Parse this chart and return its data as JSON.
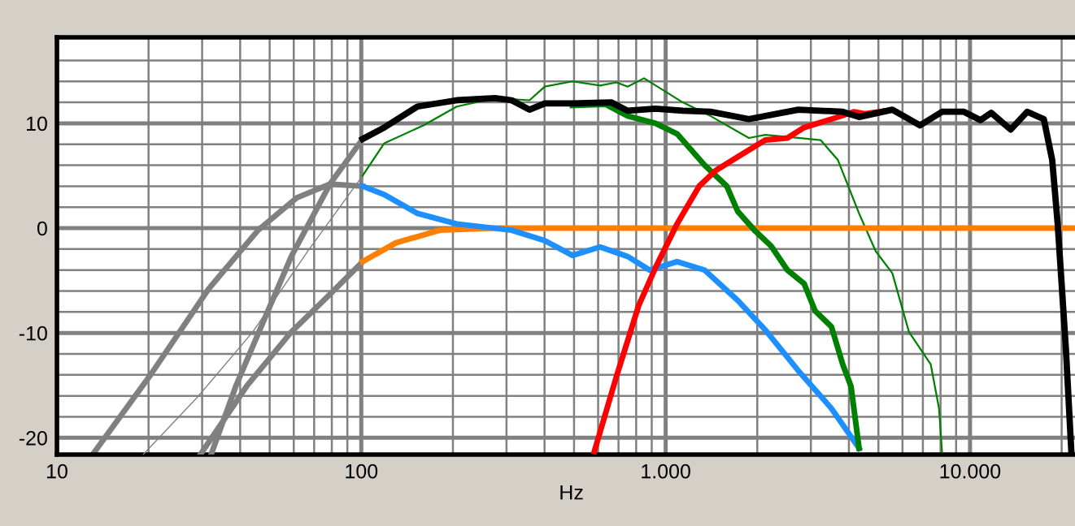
{
  "chart_data": {
    "type": "line",
    "xlabel": "Hz",
    "log": "x",
    "grid": true,
    "legend": false,
    "line_style": "solid",
    "marker": "none",
    "xlim": [
      10,
      24000
    ],
    "ylim": [
      -21.6,
      18.2
    ],
    "xticks": [
      10,
      {
        "value": 20,
        "label": null
      },
      {
        "value": 30,
        "label": null
      },
      {
        "value": 40,
        "label": null
      },
      {
        "value": 50,
        "label": null
      },
      {
        "value": 60,
        "label": null
      },
      {
        "value": 70,
        "label": null
      },
      {
        "value": 80,
        "label": null
      },
      {
        "value": 90,
        "label": null
      },
      100,
      {
        "value": 200,
        "label": null
      },
      {
        "value": 300,
        "label": null
      },
      {
        "value": 400,
        "label": null
      },
      {
        "value": 500,
        "label": null
      },
      {
        "value": 600,
        "label": null
      },
      {
        "value": 700,
        "label": null
      },
      {
        "value": 800,
        "label": null
      },
      {
        "value": 900,
        "label": null
      },
      {
        "value": 1000,
        "label": "1.000"
      },
      {
        "value": 2000,
        "label": null
      },
      {
        "value": 3000,
        "label": null
      },
      {
        "value": 4000,
        "label": null
      },
      {
        "value": 5000,
        "label": null
      },
      {
        "value": 6000,
        "label": null
      },
      {
        "value": 7000,
        "label": null
      },
      {
        "value": 8000,
        "label": null
      },
      {
        "value": 9000,
        "label": null
      },
      {
        "value": 10000,
        "label": "10.000"
      },
      {
        "value": 20000,
        "label": null
      }
    ],
    "yticks": [
      -20,
      {
        "value": -18,
        "label": null
      },
      {
        "value": -16,
        "label": null
      },
      {
        "value": -14,
        "label": null
      },
      {
        "value": -12,
        "label": null
      },
      -10,
      {
        "value": -8,
        "label": null
      },
      {
        "value": -6,
        "label": null
      },
      {
        "value": -4,
        "label": null
      },
      {
        "value": -2,
        "label": null
      },
      0,
      {
        "value": 2,
        "label": null
      },
      {
        "value": 4,
        "label": null
      },
      {
        "value": 6,
        "label": null
      },
      {
        "value": 8,
        "label": null
      },
      10,
      {
        "value": 12,
        "label": null
      },
      {
        "value": 14,
        "label": null
      },
      {
        "value": 16,
        "label": null
      }
    ],
    "series": [
      {
        "color": "#808080",
        "x": [
          13.1,
          20.3,
          31.5,
          45.8,
          61.4,
          78.9,
          101
        ],
        "values": [
          -21.6,
          -14,
          -5.8,
          -0.2,
          2.9,
          4.2,
          4
        ]
      },
      {
        "color": "#808080",
        "x": [
          29.6,
          42.2,
          58.9,
          78.9,
          101
        ],
        "values": [
          -21.6,
          -15,
          -9.9,
          -6.3,
          -3.2
        ]
      },
      {
        "color": "#808080",
        "x": [
          32.1,
          38.8,
          47.7,
          58.9,
          78.9,
          101
        ],
        "values": [
          -21.6,
          -15,
          -8.9,
          -2.7,
          4.2,
          8.5
        ]
      },
      {
        "color": "#808080",
        "x": [
          19.2,
          29,
          44,
          66.7,
          101
        ],
        "values": [
          -21.6,
          -16.1,
          -9.9,
          -2.2,
          5
        ]
      },
      {
        "color": "#008000",
        "x": [
          101,
          119,
          160,
          206,
          275,
          357,
          401,
          494,
          609,
          690,
          750,
          849,
          1138,
          1403,
          1877,
          2124,
          2728,
          3229,
          3680,
          4320,
          4900,
          5557,
          6300,
          7430,
          7910,
          8090
        ],
        "values": [
          5,
          8.1,
          9.8,
          11.6,
          12.4,
          12.2,
          13.5,
          14,
          13.6,
          13.9,
          13.5,
          14.3,
          12,
          10.7,
          8.6,
          8.9,
          8.6,
          8.4,
          6.5,
          1.4,
          -2.2,
          -4.3,
          -9.9,
          -13,
          -17.2,
          -21.3
        ]
      },
      {
        "color": "#ff8000",
        "x": [
          101,
          130,
          181,
          275,
          23000
        ],
        "values": [
          -3.2,
          -1.4,
          -0.2,
          0,
          0
        ]
      },
      {
        "color": "#1e8fff",
        "x": [
          101,
          119,
          153,
          206,
          312,
          401,
          494,
          609,
          750,
          886,
          1090,
          1343,
          1725,
          2124,
          2728,
          3505,
          4320
        ],
        "values": [
          4,
          3.2,
          1.4,
          0.4,
          -0.2,
          -1.2,
          -2.6,
          -1.8,
          -2.7,
          -4,
          -3.2,
          -4,
          -6.9,
          -9.7,
          -13.6,
          -17.2,
          -21
        ]
      },
      {
        "color": "#008000",
        "x": [
          494,
          636,
          750,
          925,
          1090,
          1343,
          1588,
          1725,
          1958,
          2219,
          2512,
          2851,
          3098,
          3505,
          3818,
          4065,
          4320
        ],
        "values": [
          11.7,
          11.8,
          10.7,
          10,
          9,
          6,
          4,
          1.6,
          -0.2,
          -1.7,
          -4,
          -5.3,
          -7.9,
          -9.4,
          -13,
          -15.1,
          -21
        ]
      },
      {
        "color": "#ff0000",
        "x": [
          583,
          690,
          815,
          925,
          1090,
          1288,
          1461,
          1725,
          2124,
          2512,
          2851,
          3505,
          4150,
          4510,
          5320
        ],
        "values": [
          -21.3,
          -14.1,
          -7.4,
          -3.8,
          0.4,
          4,
          5.5,
          6.8,
          8.4,
          8.6,
          9.6,
          10.4,
          11.1,
          10.9,
          11.2
        ]
      },
      {
        "color": "#000000",
        "x": [
          101,
          119,
          153,
          206,
          275,
          312,
          357,
          401,
          494,
          662,
          750,
          925,
          1138,
          1403,
          1877,
          2728,
          3818,
          4320,
          5557,
          6845,
          8091,
          9550,
          10820,
          11740,
          13600,
          15420,
          17480,
          18620,
          19410,
          20650,
          21520
        ],
        "values": [
          8.5,
          9.6,
          11.6,
          12.2,
          12.4,
          12.2,
          11.3,
          11.9,
          11.9,
          12,
          11.2,
          11.4,
          11.2,
          11.1,
          10.4,
          11.3,
          11.1,
          10.6,
          11.3,
          9.8,
          11.1,
          11.1,
          10.3,
          11,
          9.4,
          11.1,
          10.4,
          6.5,
          0.4,
          -11.5,
          -21.3
        ]
      }
    ]
  }
}
